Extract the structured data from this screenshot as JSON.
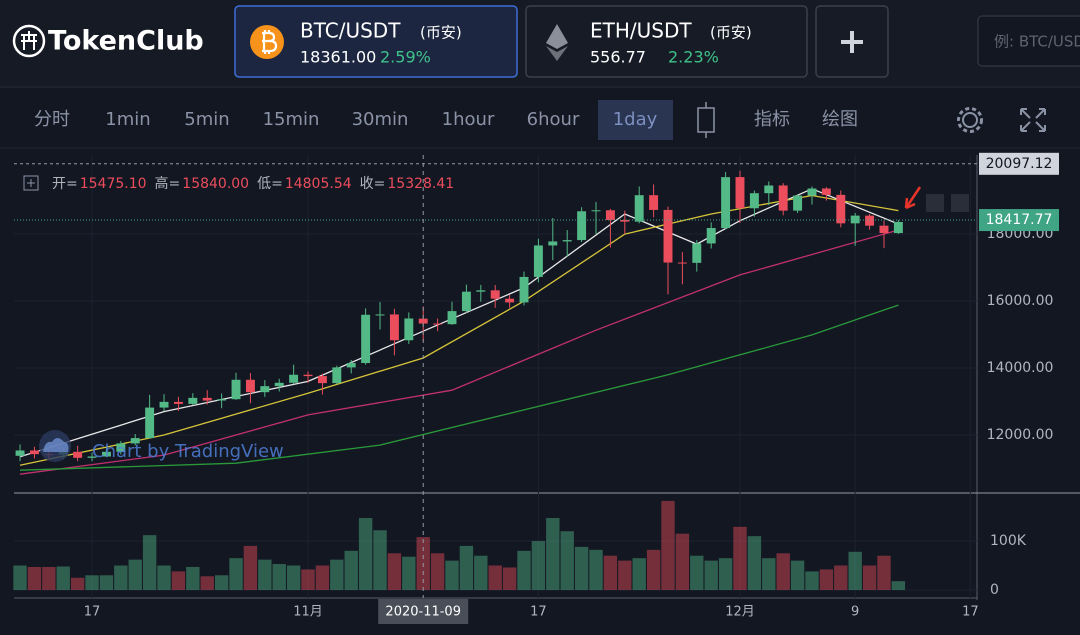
{
  "header": {
    "logo": "TokenClub",
    "pairs": [
      {
        "symbol": "BTC/USDT",
        "exchange": "(币安)",
        "price": "18361.00",
        "change": "2.59%"
      },
      {
        "symbol": "ETH/USDT",
        "exchange": "(币安)",
        "price": "556.77",
        "change": "2.23%"
      }
    ],
    "search_placeholder": "例: BTC/USDT"
  },
  "toolbar": {
    "intervals": [
      "分时",
      "1min",
      "5min",
      "15min",
      "30min",
      "1hour",
      "6hour",
      "1day"
    ],
    "selected_interval": "1day",
    "tools": [
      "指标",
      "绘图"
    ]
  },
  "chart_data": {
    "type": "candlestick",
    "watermark": "Chart by TradingView",
    "ohlc_legend": [
      {
        "label": "开=",
        "value": "15475.10"
      },
      {
        "label": "高=",
        "value": "15840.00"
      },
      {
        "label": "低=",
        "value": "14805.54"
      },
      {
        "label": "收=",
        "value": "15328.41"
      }
    ],
    "xlim": [
      -0.42,
      66.46
    ],
    "xticks": [
      {
        "value": 5,
        "label": "17"
      },
      {
        "value": 20,
        "label": "11月"
      },
      {
        "value": 36,
        "label": "17"
      },
      {
        "value": 50,
        "label": "12月"
      },
      {
        "value": 58,
        "label": "9"
      },
      {
        "value": 66,
        "label": "17"
      }
    ],
    "crosshair": {
      "value": 28,
      "label": "2020-11-09"
    },
    "ylim": [
      10270,
      20360
    ],
    "yticks": [
      {
        "value": 12000,
        "label": "12000.00"
      },
      {
        "value": 14000,
        "label": "14000.00"
      },
      {
        "value": 16000,
        "label": "16000.00"
      },
      {
        "value": 18000,
        "label": "18000.00"
      }
    ],
    "high_marker": 20097.12,
    "last_price": 18417.77,
    "up_color": "#53b987",
    "down_color": "#eb4d5c",
    "open": [
      11380,
      11540,
      11430,
      11420,
      11500,
      11320,
      11360,
      11500,
      11750,
      11910,
      12820,
      12990,
      12930,
      13110,
      13030,
      13070,
      13650,
      13280,
      13460,
      13560,
      13800,
      13760,
      13550,
      14020,
      14150,
      15590,
      15600,
      14830,
      15475.1,
      15328.41,
      15310,
      15700,
      16280,
      16320,
      16070,
      15960,
      16720,
      17660,
      17780,
      17820,
      18680,
      18710,
      18420,
      18370,
      19160,
      18720,
      17150,
      17140,
      17720,
      18180,
      19700,
      18770,
      19220,
      19450,
      18700,
      19150,
      19360,
      19170,
      18320,
      18550,
      18250,
      18030
    ],
    "high": [
      11720,
      11650,
      11550,
      11620,
      11680,
      11480,
      11620,
      11820,
      12030,
      13200,
      13220,
      13140,
      13250,
      13340,
      13240,
      13860,
      13850,
      13640,
      13680,
      14100,
      13900,
      13830,
      14070,
      14240,
      15780,
      15970,
      15770,
      15660,
      15840,
      15480,
      15980,
      16490,
      16480,
      16480,
      16180,
      16880,
      17860,
      18480,
      18120,
      18800,
      18960,
      18750,
      18700,
      19420,
      19480,
      18820,
      17460,
      17820,
      18350,
      19850,
      19890,
      19300,
      19570,
      19520,
      19170,
      19420,
      19400,
      19300,
      18630,
      18600,
      18400,
      18420
    ],
    "low": [
      11220,
      11300,
      11250,
      11290,
      11220,
      11220,
      11340,
      11420,
      11690,
      11900,
      12720,
      12720,
      12890,
      12910,
      12800,
      13050,
      12950,
      13140,
      13300,
      13520,
      13560,
      13210,
      13520,
      13840,
      14100,
      15150,
      14380,
      14720,
      14805.54,
      15100,
      15290,
      15650,
      15980,
      15800,
      15800,
      15870,
      16560,
      17220,
      17330,
      17760,
      18000,
      17600,
      18000,
      18320,
      18500,
      16200,
      16500,
      16880,
      17570,
      18140,
      18330,
      18520,
      18860,
      18560,
      18630,
      18880,
      19000,
      18200,
      17650,
      18130,
      17580,
      18000
    ],
    "close": [
      11540,
      11430,
      11420,
      11500,
      11320,
      11360,
      11500,
      11750,
      11910,
      12820,
      12990,
      12930,
      13110,
      13030,
      13070,
      13650,
      13280,
      13460,
      13560,
      13800,
      13760,
      13550,
      14020,
      14150,
      15590,
      15600,
      14830,
      15480,
      15328.41,
      15310,
      15700,
      16280,
      16320,
      16070,
      15960,
      16720,
      17660,
      17780,
      17820,
      18680,
      18710,
      18420,
      18370,
      19160,
      18720,
      17150,
      17140,
      17720,
      18180,
      19700,
      18770,
      19220,
      19450,
      18700,
      19150,
      19360,
      19170,
      18320,
      18550,
      18250,
      18030,
      18361
    ],
    "volume": [
      50000,
      47000,
      47000,
      48000,
      25000,
      30000,
      30000,
      50000,
      62000,
      112000,
      50000,
      38000,
      47000,
      28000,
      30000,
      65000,
      90000,
      62000,
      53000,
      50000,
      42000,
      50000,
      62000,
      80000,
      147000,
      122000,
      75000,
      68000,
      108000,
      75000,
      60000,
      90000,
      70000,
      50000,
      46000,
      80000,
      100000,
      147000,
      120000,
      88000,
      82000,
      70000,
      60000,
      65000,
      82000,
      182000,
      115000,
      70000,
      60000,
      65000,
      129000,
      110000,
      65000,
      75000,
      60000,
      38000,
      42000,
      50000,
      78000,
      50000,
      70000,
      18000
    ],
    "vlim": [
      0,
      194000
    ],
    "vticks": [
      0,
      {
        "value": 100000,
        "label": "100K"
      }
    ],
    "ma_lines": [
      {
        "color": "#e8e8e8",
        "x_index": [
          0,
          10,
          20,
          28,
          35,
          42,
          47,
          50,
          55,
          61
        ],
        "values": [
          11350,
          12700,
          13600,
          15100,
          16400,
          18600,
          17700,
          18400,
          19350,
          18300
        ]
      },
      {
        "color": "#d6c43a",
        "x_index": [
          0,
          10,
          20,
          28,
          35,
          42,
          48,
          55,
          61
        ],
        "values": [
          11100,
          12000,
          13250,
          14300,
          16000,
          18000,
          18600,
          19150,
          18700
        ]
      },
      {
        "color": "#c2306f",
        "x_index": [
          0,
          10,
          20,
          30,
          40,
          50,
          61
        ],
        "values": [
          10830,
          11400,
          12600,
          13340,
          15130,
          16780,
          18120
        ]
      },
      {
        "color": "#2a9a3a",
        "x_index": [
          0,
          15,
          25,
          35,
          45,
          55,
          61
        ],
        "values": [
          10950,
          11160,
          11700,
          12750,
          13800,
          14990,
          15880
        ]
      }
    ]
  }
}
